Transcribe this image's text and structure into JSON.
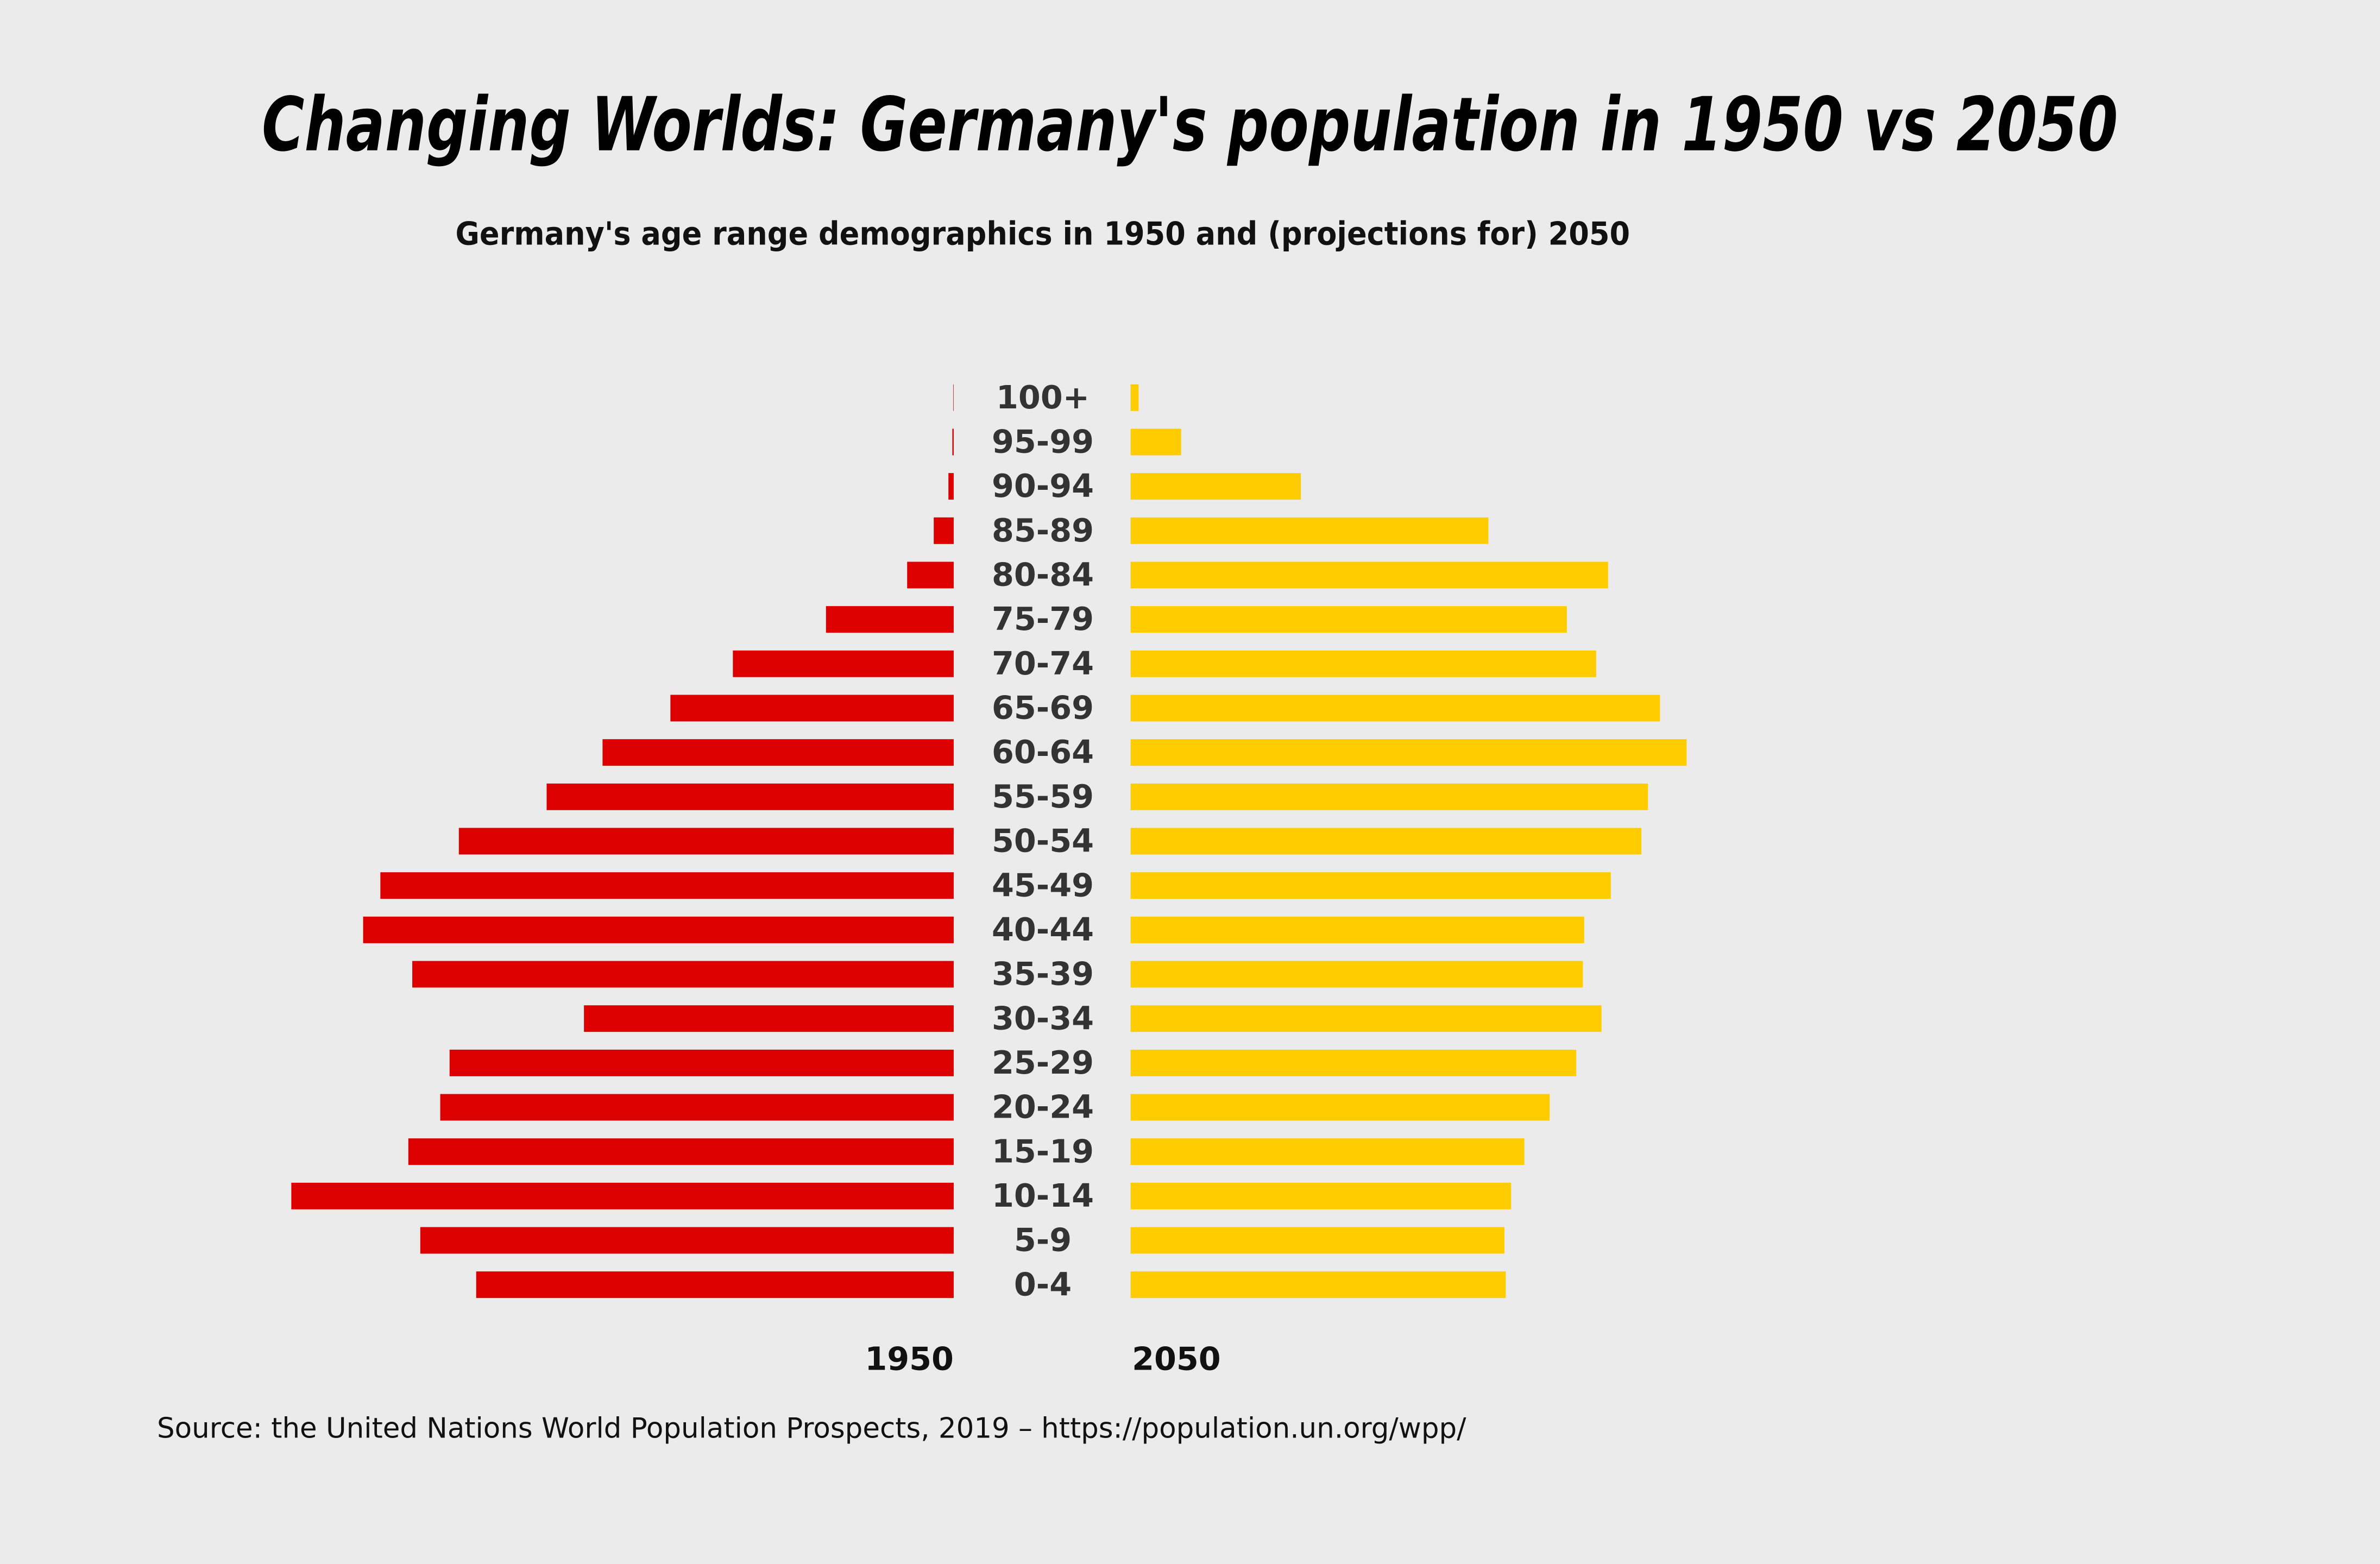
{
  "chart_data": {
    "type": "bar",
    "orientation": "horizontal-butterfly",
    "title": "Changing Worlds: Germany's population in 1950 vs 2050",
    "subtitle": "Germany's age range demographics in 1950 and (projections for) 2050",
    "source": "Source: the United Nations World Population Prospects, 2019 – https://population.un.org/wpp/",
    "categories": [
      "0-4",
      "5-9",
      "10-14",
      "15-19",
      "20-24",
      "25-29",
      "30-34",
      "35-39",
      "40-44",
      "45-49",
      "50-54",
      "55-59",
      "60-64",
      "65-69",
      "70-74",
      "75-79",
      "80-84",
      "85-89",
      "90-94",
      "95-99",
      "100+"
    ],
    "series": [
      {
        "name": "1950",
        "side": "left",
        "color": "#dd0000",
        "values": [
          4595,
          5133,
          6374,
          5248,
          4941,
          4851,
          3558,
          5210,
          5683,
          5517,
          4762,
          3917,
          3379,
          2726,
          2125,
          1229,
          448,
          192,
          51,
          13,
          4
        ]
      },
      {
        "name": "2050",
        "side": "right",
        "color": "#ffcc00",
        "values": [
          3610,
          3597,
          3661,
          3789,
          4032,
          4288,
          4531,
          4352,
          4365,
          4621,
          4915,
          4979,
          5350,
          5094,
          4480,
          4198,
          4595,
          3443,
          1638,
          486,
          77
        ]
      }
    ],
    "value_units": "estimated, thousands (no axis shown)",
    "xlim": [
      0,
      6500
    ],
    "grid": false,
    "legend": "none"
  }
}
